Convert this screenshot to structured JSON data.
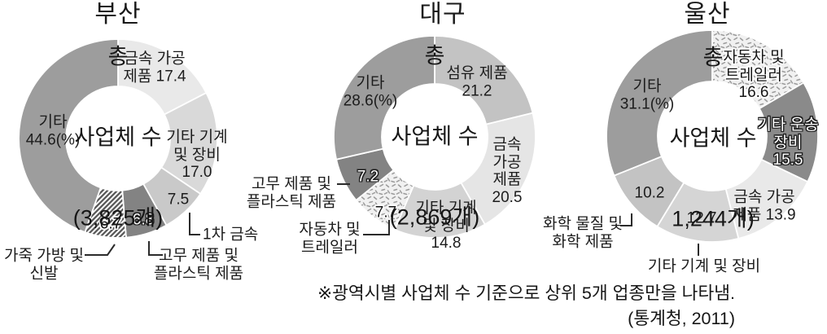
{
  "note": "※광역시별 사업체 수 기준으로 상위 5개 업종만을 나타냄.",
  "source": "(통계청, 2011)",
  "chart_data": [
    {
      "id": "busan",
      "type": "donut",
      "title": "부산",
      "unit": "%",
      "center_label_lines": [
        "총",
        "사업체 수",
        "(3,825개)"
      ],
      "slices": [
        {
          "label": "금속 가공 제품",
          "value": 17.4,
          "fill": "#e9e9e9",
          "label_style": "dark",
          "label_lines": [
            "금속 가공",
            "제품 17.4"
          ]
        },
        {
          "label": "기타 기계 및 장비",
          "value": 17.0,
          "fill": "#d9d9d9",
          "label_style": "dark",
          "label_lines": [
            "기타 기계",
            "및 장비",
            "17.0"
          ]
        },
        {
          "label": "1차 금속",
          "value": 7.5,
          "fill": "#c9c9c9",
          "label_style": "dark",
          "label_lines": [
            "7.5"
          ],
          "callout_lines": [
            "1차 금속"
          ]
        },
        {
          "label": "고무 제품 및 플라스틱 제품",
          "value": 6.8,
          "fill": "#838383",
          "label_style": "white-outline",
          "label_lines": [
            "6.8"
          ],
          "callout_lines": [
            "고무 제품 및",
            "플라스틱 제품"
          ]
        },
        {
          "label": "가죽 가방 및 신발",
          "value": 6.7,
          "fill": "hatch",
          "label_style": "dark-halo",
          "label_lines": [
            "6.7"
          ],
          "callout_lines": [
            "가죽 가방 및",
            "신발"
          ]
        },
        {
          "label": "기타",
          "value": 44.6,
          "fill": "#9d9d9d",
          "label_style": "dark",
          "label_lines": [
            "기타",
            "44.6(%)"
          ]
        }
      ]
    },
    {
      "id": "daegu",
      "type": "donut",
      "title": "대구",
      "unit": "%",
      "center_label_lines": [
        "총",
        "사업체 수",
        "(2,869개)"
      ],
      "slices": [
        {
          "label": "섬유 제품",
          "value": 21.2,
          "fill": "#c3c3c3",
          "label_style": "dark",
          "label_lines": [
            "섬유 제품",
            "21.2"
          ]
        },
        {
          "label": "금속 가공 제품",
          "value": 20.5,
          "fill": "#e5e5e5",
          "label_style": "dark",
          "label_lines": [
            "금속",
            "가공",
            "제품",
            "20.5"
          ]
        },
        {
          "label": "기타 기계 및 장비",
          "value": 14.8,
          "fill": "#d3d3d3",
          "label_style": "dark",
          "label_lines": [
            "기타 기계",
            "및 장비",
            "14.8"
          ]
        },
        {
          "label": "자동차 및 트레일러",
          "value": 7.7,
          "fill": "speckle",
          "label_style": "dark-halo",
          "label_lines": [
            "7.7"
          ],
          "callout_lines": [
            "자동차 및",
            "트레일러"
          ]
        },
        {
          "label": "고무 제품 및 플라스틱 제품",
          "value": 7.2,
          "fill": "#838383",
          "label_style": "white-outline",
          "label_lines": [
            "7.2"
          ],
          "callout_lines": [
            "고무 제품 및",
            "플라스틱 제품"
          ]
        },
        {
          "label": "기타",
          "value": 28.6,
          "fill": "#9d9d9d",
          "label_style": "dark",
          "label_lines": [
            "기타",
            "28.6(%)"
          ]
        }
      ]
    },
    {
      "id": "ulsan",
      "type": "donut",
      "title": "울산",
      "unit": "%",
      "center_label_lines": [
        "총",
        "사업체 수",
        "1,244개)"
      ],
      "slices": [
        {
          "label": "자동차 및 트레일러",
          "value": 16.6,
          "fill": "speckle",
          "label_style": "dark-halo",
          "label_lines": [
            "자동차 및",
            "트레일러",
            "16.6"
          ]
        },
        {
          "label": "기타 운송 장비",
          "value": 15.5,
          "fill": "#8a8a8a",
          "label_style": "white-outline",
          "label_lines": [
            "기타 운송",
            "장비",
            "15.5"
          ]
        },
        {
          "label": "금속 가공 제품",
          "value": 13.9,
          "fill": "#e9e9e9",
          "label_style": "dark",
          "label_lines": [
            "금속 가공",
            "제품 13.9"
          ]
        },
        {
          "label": "기타 기계 및 장비",
          "value": 12.7,
          "fill": "#d5d5d5",
          "label_style": "dark",
          "label_lines": [
            "12.7"
          ],
          "callout_lines": [
            "기타 기계 및 장비"
          ]
        },
        {
          "label": "화학 물질 및 화학 제품",
          "value": 10.2,
          "fill": "#c3c3c3",
          "label_style": "dark",
          "label_lines": [
            "10.2"
          ],
          "callout_lines": [
            "화학 물질 및",
            "화학 제품"
          ]
        },
        {
          "label": "기타",
          "value": 31.1,
          "fill": "#9d9d9d",
          "label_style": "dark",
          "label_lines": [
            "기타",
            "31.1(%)"
          ]
        }
      ]
    }
  ]
}
